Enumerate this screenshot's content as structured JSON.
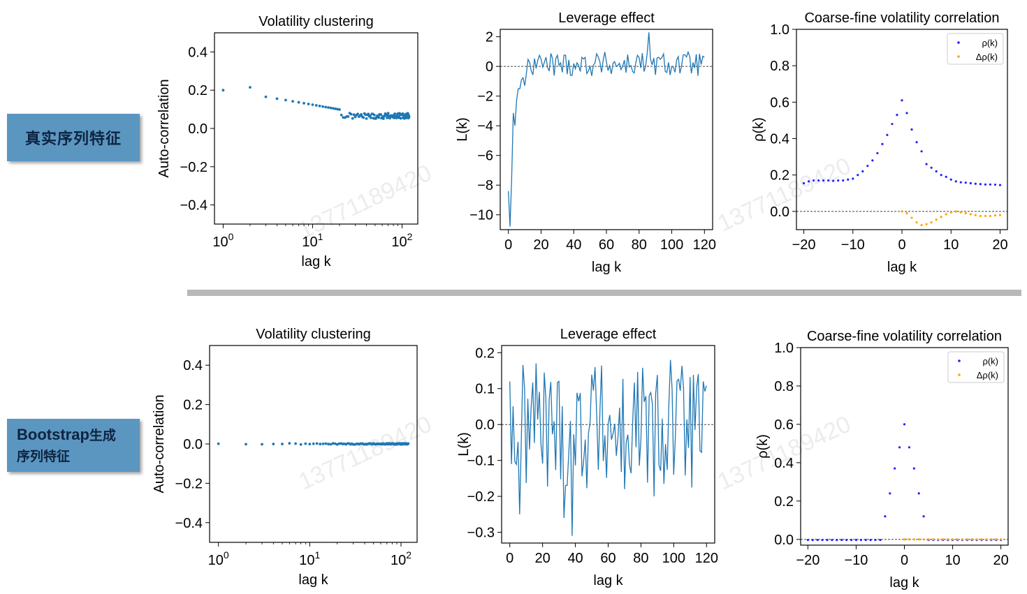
{
  "labels": {
    "real": "真实序列特征",
    "bootstrap_latin": "Bootstrap",
    "bootstrap_rest1": "生成",
    "bootstrap_rest2": "序列特征"
  },
  "watermark": "13771189420",
  "colors": {
    "series": "#1f77b4",
    "rho": "#2222ff",
    "delta_rho": "#ffa500",
    "label_bg": "#5b96c1"
  },
  "chart_data": [
    {
      "id": "real-vol",
      "type": "scatter",
      "title": "Volatility clustering",
      "xlabel": "lag k",
      "ylabel": "Auto-correlation",
      "xscale": "log",
      "xlim": [
        0.8,
        150
      ],
      "ylim": [
        -0.5,
        0.5
      ],
      "yticks": [
        -0.4,
        -0.2,
        0.0,
        0.2,
        0.4
      ],
      "ytick_labels": [
        "−0.4",
        "−0.2",
        "0.0",
        "0.2",
        "0.4"
      ],
      "xticks": [
        1,
        10,
        100
      ],
      "xtick_labels": [
        [
          "10",
          "0"
        ],
        [
          "10",
          "1"
        ],
        [
          "10",
          "2"
        ]
      ],
      "k_max": 120,
      "series_desc": "decays from ~0.2 at k=1 to ~0.06 at k=120",
      "color": "#1f77b4"
    },
    {
      "id": "real-lev",
      "type": "line",
      "title": "Leverage effect",
      "xlabel": "lag k",
      "ylabel": "L(k)",
      "xlim": [
        -5,
        125
      ],
      "ylim": [
        -11,
        2.5
      ],
      "xticks": [
        0,
        20,
        40,
        60,
        80,
        100,
        120
      ],
      "xtick_labels": [
        "0",
        "20",
        "40",
        "60",
        "80",
        "100",
        "120"
      ],
      "yticks": [
        2,
        0,
        -2,
        -4,
        -6,
        -8,
        -10
      ],
      "ytick_labels": [
        "2",
        "0",
        "−2",
        "−4",
        "−6",
        "−8",
        "−10"
      ],
      "hline": 0,
      "color": "#1f77b4",
      "key_points": [
        [
          0,
          -8.4
        ],
        [
          1,
          -10.8
        ],
        [
          2,
          -7.5
        ],
        [
          4,
          -4
        ],
        [
          6,
          -1.5
        ],
        [
          8,
          -0.9
        ],
        [
          10,
          -1.3
        ],
        [
          14,
          -0.3
        ],
        [
          20,
          0.5
        ],
        [
          40,
          0.2
        ],
        [
          60,
          0.3
        ],
        [
          80,
          0.6
        ],
        [
          86,
          2.3
        ],
        [
          88,
          0.1
        ],
        [
          100,
          0
        ],
        [
          120,
          0.6
        ]
      ]
    },
    {
      "id": "real-cf",
      "type": "scatter",
      "title": "Coarse-fine volatility correlation",
      "xlabel": "lag k",
      "ylabel": "ρ(k)",
      "xlim": [
        -21.5,
        21.5
      ],
      "ylim": [
        -0.1,
        1.0
      ],
      "xticks": [
        -20,
        -10,
        0,
        10,
        20
      ],
      "xtick_labels": [
        "−20",
        "−10",
        "0",
        "10",
        "20"
      ],
      "yticks": [
        0.0,
        0.2,
        0.4,
        0.6,
        0.8,
        1.0
      ],
      "ytick_labels": [
        "0.0",
        "0.2",
        "0.4",
        "0.6",
        "0.8",
        "1.0"
      ],
      "hline": 0,
      "legend": {
        "entries": [
          "ρ(k)",
          "Δρ(k)"
        ],
        "position": "top-right"
      },
      "series": [
        {
          "name": "ρ(k)",
          "color": "#2222ff",
          "x": [
            -20,
            -19,
            -18,
            -17,
            -16,
            -15,
            -14,
            -13,
            -12,
            -11,
            -10,
            -9,
            -8,
            -7,
            -6,
            -5,
            -4,
            -3,
            -2,
            -1,
            0,
            1,
            2,
            3,
            4,
            5,
            6,
            7,
            8,
            9,
            10,
            11,
            12,
            13,
            14,
            15,
            16,
            17,
            18,
            19,
            20
          ],
          "y": [
            0.155,
            0.165,
            0.17,
            0.17,
            0.17,
            0.17,
            0.168,
            0.17,
            0.17,
            0.175,
            0.18,
            0.2,
            0.22,
            0.25,
            0.28,
            0.32,
            0.37,
            0.42,
            0.48,
            0.53,
            0.61,
            0.54,
            0.45,
            0.38,
            0.33,
            0.26,
            0.24,
            0.22,
            0.2,
            0.19,
            0.175,
            0.165,
            0.16,
            0.158,
            0.155,
            0.152,
            0.15,
            0.148,
            0.148,
            0.147,
            0.145
          ]
        },
        {
          "name": "Δρ(k)",
          "color": "#ffa500",
          "x": [
            0,
            1,
            2,
            3,
            4,
            5,
            6,
            7,
            8,
            9,
            10,
            11,
            12,
            13,
            14,
            15,
            16,
            17,
            18,
            19,
            20
          ],
          "y": [
            0,
            -0.01,
            -0.035,
            -0.06,
            -0.075,
            -0.07,
            -0.06,
            -0.045,
            -0.03,
            -0.015,
            -0.005,
            0,
            -0.005,
            -0.01,
            -0.015,
            -0.02,
            -0.025,
            -0.025,
            -0.025,
            -0.022,
            -0.02
          ]
        }
      ]
    },
    {
      "id": "boot-vol",
      "type": "scatter",
      "title": "Volatility clustering",
      "xlabel": "lag k",
      "ylabel": "Auto-correlation",
      "xscale": "log",
      "xlim": [
        0.8,
        150
      ],
      "ylim": [
        -0.5,
        0.5
      ],
      "yticks": [
        -0.4,
        -0.2,
        0.0,
        0.2,
        0.4
      ],
      "ytick_labels": [
        "−0.4",
        "−0.2",
        "0.0",
        "0.2",
        "0.4"
      ],
      "xticks": [
        1,
        10,
        100
      ],
      "xtick_labels": [
        [
          "10",
          "0"
        ],
        [
          "10",
          "1"
        ],
        [
          "10",
          "2"
        ]
      ],
      "k_max": 120,
      "series_desc": "approximately 0.0 for all lags",
      "color": "#1f77b4"
    },
    {
      "id": "boot-lev",
      "type": "line",
      "title": "Leverage effect",
      "xlabel": "lag k",
      "ylabel": "L(k)",
      "xlim": [
        -5,
        125
      ],
      "ylim": [
        -0.33,
        0.22
      ],
      "xticks": [
        0,
        20,
        40,
        60,
        80,
        100,
        120
      ],
      "xtick_labels": [
        "0",
        "20",
        "40",
        "60",
        "80",
        "100",
        "120"
      ],
      "yticks": [
        0.2,
        0.1,
        0.0,
        -0.1,
        -0.2,
        -0.3
      ],
      "ytick_labels": [
        "0.2",
        "0.1",
        "0.0",
        "−0.1",
        "−0.2",
        "−0.3"
      ],
      "hline": 0,
      "color": "#1f77b4",
      "key_points": [
        [
          0,
          0.12
        ],
        [
          1,
          -0.11
        ],
        [
          6,
          -0.25
        ],
        [
          16,
          0.17
        ],
        [
          33,
          -0.26
        ],
        [
          38,
          -0.31
        ],
        [
          52,
          0.16
        ],
        [
          70,
          -0.18
        ],
        [
          88,
          -0.2
        ],
        [
          98,
          0.18
        ],
        [
          118,
          0.12
        ]
      ]
    },
    {
      "id": "boot-cf",
      "type": "scatter",
      "title": "Coarse-fine volatility correlation",
      "xlabel": "lag k",
      "ylabel": "ρ(k)",
      "xlim": [
        -21.5,
        21.5
      ],
      "ylim": [
        -0.03,
        1.0
      ],
      "xticks": [
        -20,
        -10,
        0,
        10,
        20
      ],
      "xtick_labels": [
        "−20",
        "−10",
        "0",
        "10",
        "20"
      ],
      "yticks": [
        0.0,
        0.2,
        0.4,
        0.6,
        0.8,
        1.0
      ],
      "ytick_labels": [
        "0.0",
        "0.2",
        "0.4",
        "0.6",
        "0.8",
        "1.0"
      ],
      "hline": 0,
      "legend": {
        "entries": [
          "ρ(k)",
          "Δρ(k)"
        ],
        "position": "top-right"
      },
      "series": [
        {
          "name": "ρ(k)",
          "color": "#2222ff",
          "x": [
            -20,
            -19,
            -18,
            -17,
            -16,
            -15,
            -14,
            -13,
            -12,
            -11,
            -10,
            -9,
            -8,
            -7,
            -6,
            -5,
            -4,
            -3,
            -2,
            -1,
            0,
            1,
            2,
            3,
            4,
            5,
            6,
            7,
            8,
            9,
            10,
            11,
            12,
            13,
            14,
            15,
            16,
            17,
            18,
            19,
            20
          ],
          "y": [
            -0.003,
            -0.003,
            -0.003,
            -0.003,
            -0.003,
            -0.003,
            -0.003,
            -0.003,
            -0.003,
            -0.003,
            -0.003,
            -0.003,
            -0.003,
            -0.003,
            -0.003,
            -0.003,
            0.12,
            0.24,
            0.37,
            0.48,
            0.6,
            0.48,
            0.37,
            0.24,
            0.12,
            -0.003,
            -0.003,
            -0.003,
            -0.003,
            -0.003,
            -0.003,
            -0.003,
            -0.003,
            -0.003,
            -0.003,
            -0.003,
            -0.003,
            -0.003,
            -0.003,
            -0.003,
            -0.003
          ]
        },
        {
          "name": "Δρ(k)",
          "color": "#ffa500",
          "x": [
            0,
            1,
            2,
            3,
            4,
            5,
            6,
            7,
            8,
            9,
            10,
            11,
            12,
            13,
            14,
            15,
            16,
            17,
            18,
            19,
            20
          ],
          "y": [
            0,
            0,
            0,
            0,
            0,
            0,
            0,
            0,
            0,
            0,
            0,
            0,
            0,
            0,
            0,
            0,
            0,
            0,
            0,
            0,
            0
          ]
        }
      ]
    }
  ]
}
